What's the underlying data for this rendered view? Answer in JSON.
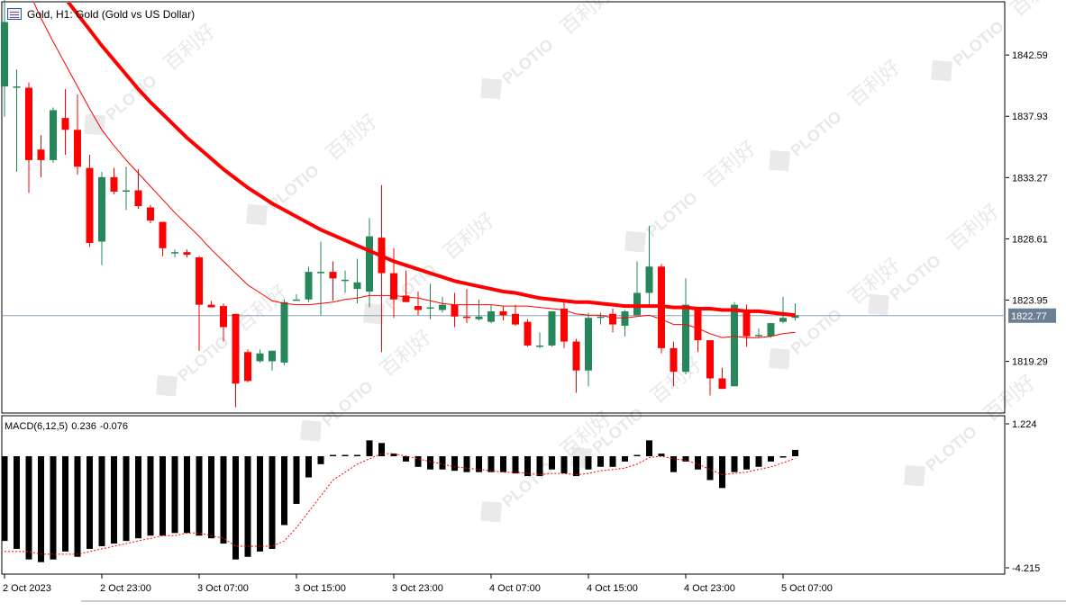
{
  "header": {
    "symbol": "Gold",
    "timeframe": "H1",
    "description": "Gold (Gold vs US Dollar)",
    "title_text": "Gold, H1:  Gold (Gold vs US Dollar)"
  },
  "colors": {
    "bull": "#26875a",
    "bear": "#ff0000",
    "ma_fast": "#ff0000",
    "ma_slow": "#ff0000",
    "current_price_line": "#8aa0b5",
    "current_price_tag": "#6b7f92",
    "macd_hist": "#000000",
    "macd_signal": "#ff0000",
    "watermark": "#d9d9d9"
  },
  "watermark": {
    "brand": "PLOTIO",
    "chinese": "百利好"
  },
  "chart_data": [
    {
      "type": "candlestick",
      "title": "Gold, H1:  Gold (Gold vs US Dollar)",
      "ylim": [
        1815.5,
        1846.5
      ],
      "y_ticks": [
        "1842.59",
        "1837.93",
        "1833.27",
        "1828.61",
        "1823.95",
        "1819.29"
      ],
      "current_price": "1822.77",
      "x_ticks": [
        "2 Oct 2023",
        "2 Oct 23:00",
        "3 Oct 07:00",
        "3 Oct 15:00",
        "3 Oct 23:00",
        "4 Oct 07:00",
        "4 Oct 15:00",
        "4 Oct 23:00",
        "5 Oct 07:00"
      ],
      "x_tick_index": [
        0,
        8,
        16,
        24,
        32,
        40,
        48,
        56,
        64
      ],
      "grid": false,
      "candles": [
        {
          "o": 1840.2,
          "h": 1847.0,
          "l": 1837.9,
          "c": 1845.1
        },
        {
          "o": 1840.2,
          "h": 1841.5,
          "l": 1833.7,
          "c": 1840.2
        },
        {
          "o": 1840.1,
          "h": 1840.5,
          "l": 1832.1,
          "c": 1834.6
        },
        {
          "o": 1835.4,
          "h": 1836.5,
          "l": 1833.3,
          "c": 1834.6
        },
        {
          "o": 1834.6,
          "h": 1838.6,
          "l": 1834.4,
          "c": 1838.4
        },
        {
          "o": 1837.8,
          "h": 1840.0,
          "l": 1835.0,
          "c": 1836.9
        },
        {
          "o": 1836.9,
          "h": 1839.6,
          "l": 1833.5,
          "c": 1834.1
        },
        {
          "o": 1834.0,
          "h": 1835.0,
          "l": 1828.0,
          "c": 1828.3
        },
        {
          "o": 1828.4,
          "h": 1833.7,
          "l": 1826.6,
          "c": 1833.3
        },
        {
          "o": 1833.3,
          "h": 1834.0,
          "l": 1832.0,
          "c": 1832.2
        },
        {
          "o": 1832.3,
          "h": 1834.1,
          "l": 1830.8,
          "c": 1832.3
        },
        {
          "o": 1832.3,
          "h": 1833.9,
          "l": 1830.9,
          "c": 1831.1
        },
        {
          "o": 1831.0,
          "h": 1831.2,
          "l": 1829.8,
          "c": 1830.0
        },
        {
          "o": 1829.9,
          "h": 1829.9,
          "l": 1827.3,
          "c": 1827.9
        },
        {
          "o": 1827.6,
          "h": 1827.8,
          "l": 1827.2,
          "c": 1827.6
        },
        {
          "o": 1827.6,
          "h": 1827.8,
          "l": 1827.2,
          "c": 1827.4
        },
        {
          "o": 1827.2,
          "h": 1827.3,
          "l": 1820.1,
          "c": 1823.6
        },
        {
          "o": 1823.6,
          "h": 1823.9,
          "l": 1823.4,
          "c": 1823.4
        },
        {
          "o": 1823.5,
          "h": 1823.7,
          "l": 1820.8,
          "c": 1821.9
        },
        {
          "o": 1822.9,
          "h": 1822.9,
          "l": 1815.8,
          "c": 1817.6
        },
        {
          "o": 1820.0,
          "h": 1820.2,
          "l": 1817.7,
          "c": 1817.8
        },
        {
          "o": 1819.3,
          "h": 1820.2,
          "l": 1819.2,
          "c": 1819.9
        },
        {
          "o": 1819.3,
          "h": 1820.1,
          "l": 1818.6,
          "c": 1820.1
        },
        {
          "o": 1819.2,
          "h": 1824.0,
          "l": 1819.0,
          "c": 1823.8
        },
        {
          "o": 1824.0,
          "h": 1824.4,
          "l": 1824.0,
          "c": 1824.0
        },
        {
          "o": 1824.0,
          "h": 1826.5,
          "l": 1823.8,
          "c": 1826.1
        },
        {
          "o": 1826.1,
          "h": 1828.4,
          "l": 1822.8,
          "c": 1826.1
        },
        {
          "o": 1826.1,
          "h": 1826.9,
          "l": 1823.9,
          "c": 1825.6
        },
        {
          "o": 1825.5,
          "h": 1826.2,
          "l": 1824.5,
          "c": 1825.5
        },
        {
          "o": 1824.8,
          "h": 1827.1,
          "l": 1823.7,
          "c": 1825.3
        },
        {
          "o": 1824.6,
          "h": 1830.2,
          "l": 1823.4,
          "c": 1828.8
        },
        {
          "o": 1828.7,
          "h": 1832.7,
          "l": 1820.0,
          "c": 1826.0
        },
        {
          "o": 1826.0,
          "h": 1827.9,
          "l": 1822.6,
          "c": 1824.0
        },
        {
          "o": 1824.3,
          "h": 1826.2,
          "l": 1823.8,
          "c": 1823.8
        },
        {
          "o": 1823.5,
          "h": 1824.6,
          "l": 1822.8,
          "c": 1823.2
        },
        {
          "o": 1823.4,
          "h": 1825.2,
          "l": 1822.5,
          "c": 1823.4
        },
        {
          "o": 1823.2,
          "h": 1824.2,
          "l": 1823.0,
          "c": 1823.6
        },
        {
          "o": 1823.6,
          "h": 1824.5,
          "l": 1821.9,
          "c": 1822.7
        },
        {
          "o": 1822.7,
          "h": 1824.8,
          "l": 1822.2,
          "c": 1822.6
        },
        {
          "o": 1822.5,
          "h": 1824.0,
          "l": 1822.4,
          "c": 1822.7
        },
        {
          "o": 1822.3,
          "h": 1823.6,
          "l": 1822.2,
          "c": 1823.1
        },
        {
          "o": 1823.1,
          "h": 1823.5,
          "l": 1822.4,
          "c": 1822.8
        },
        {
          "o": 1822.9,
          "h": 1823.6,
          "l": 1822.0,
          "c": 1822.1
        },
        {
          "o": 1822.3,
          "h": 1822.5,
          "l": 1820.4,
          "c": 1820.5
        },
        {
          "o": 1820.5,
          "h": 1821.5,
          "l": 1820.3,
          "c": 1820.5
        },
        {
          "o": 1820.5,
          "h": 1823.1,
          "l": 1820.4,
          "c": 1823.1
        },
        {
          "o": 1823.3,
          "h": 1823.9,
          "l": 1820.3,
          "c": 1820.8
        },
        {
          "o": 1820.8,
          "h": 1821.0,
          "l": 1816.9,
          "c": 1818.6
        },
        {
          "o": 1818.6,
          "h": 1823.0,
          "l": 1817.4,
          "c": 1822.6
        },
        {
          "o": 1822.6,
          "h": 1823.0,
          "l": 1822.1,
          "c": 1822.7
        },
        {
          "o": 1822.9,
          "h": 1823.3,
          "l": 1821.5,
          "c": 1822.1
        },
        {
          "o": 1822.0,
          "h": 1823.2,
          "l": 1821.2,
          "c": 1823.1
        },
        {
          "o": 1822.8,
          "h": 1826.9,
          "l": 1822.8,
          "c": 1824.5
        },
        {
          "o": 1824.5,
          "h": 1829.6,
          "l": 1823.5,
          "c": 1826.5
        },
        {
          "o": 1826.5,
          "h": 1826.7,
          "l": 1819.9,
          "c": 1820.3
        },
        {
          "o": 1820.3,
          "h": 1820.8,
          "l": 1817.4,
          "c": 1818.5
        },
        {
          "o": 1818.5,
          "h": 1825.6,
          "l": 1818.3,
          "c": 1823.6
        },
        {
          "o": 1823.4,
          "h": 1823.4,
          "l": 1820.0,
          "c": 1820.9
        },
        {
          "o": 1820.9,
          "h": 1820.9,
          "l": 1816.7,
          "c": 1818.0
        },
        {
          "o": 1818.0,
          "h": 1818.8,
          "l": 1817.2,
          "c": 1817.2
        },
        {
          "o": 1817.4,
          "h": 1823.8,
          "l": 1817.4,
          "c": 1823.6
        },
        {
          "o": 1823.2,
          "h": 1823.6,
          "l": 1820.4,
          "c": 1821.2
        },
        {
          "o": 1821.2,
          "h": 1821.8,
          "l": 1821.1,
          "c": 1821.3
        },
        {
          "o": 1821.2,
          "h": 1822.2,
          "l": 1821.1,
          "c": 1822.2
        },
        {
          "o": 1822.3,
          "h": 1824.2,
          "l": 1822.2,
          "c": 1822.6
        },
        {
          "o": 1822.6,
          "h": 1823.7,
          "l": 1822.4,
          "c": 1822.8
        }
      ],
      "ma_fast": [
        1851.5,
        1849.4,
        1847.4,
        1845.4,
        1843.6,
        1841.9,
        1840.2,
        1838.5,
        1836.9,
        1835.7,
        1834.6,
        1833.6,
        1832.6,
        1831.6,
        1830.6,
        1829.7,
        1828.8,
        1827.8,
        1826.9,
        1826.0,
        1825.1,
        1824.5,
        1823.9,
        1823.7,
        1823.6,
        1823.6,
        1823.7,
        1823.8,
        1824.0,
        1824.1,
        1824.3,
        1824.3,
        1824.3,
        1824.2,
        1824.1,
        1823.9,
        1823.7,
        1823.6,
        1823.6,
        1823.6,
        1823.6,
        1823.5,
        1823.5,
        1823.5,
        1823.4,
        1823.3,
        1823.2,
        1822.9,
        1822.8,
        1822.8,
        1822.6,
        1822.6,
        1822.7,
        1822.8,
        1822.5,
        1822.1,
        1822.1,
        1821.8,
        1821.4,
        1821.1,
        1821.2,
        1821.1,
        1821.1,
        1821.2,
        1821.4,
        1821.5
      ],
      "ma_slow": [
        1853.5,
        1852.2,
        1850.8,
        1849.5,
        1848.2,
        1846.9,
        1845.7,
        1844.5,
        1843.3,
        1842.2,
        1841.1,
        1840.0,
        1839.0,
        1838.1,
        1837.2,
        1836.3,
        1835.5,
        1834.7,
        1833.9,
        1833.2,
        1832.5,
        1831.9,
        1831.3,
        1830.8,
        1830.3,
        1829.8,
        1829.3,
        1828.9,
        1828.5,
        1828.1,
        1827.7,
        1827.3,
        1826.9,
        1826.6,
        1826.3,
        1826.0,
        1825.7,
        1825.4,
        1825.2,
        1825.0,
        1824.8,
        1824.6,
        1824.5,
        1824.3,
        1824.1,
        1824.0,
        1823.9,
        1823.8,
        1823.8,
        1823.7,
        1823.6,
        1823.5,
        1823.5,
        1823.5,
        1823.5,
        1823.4,
        1823.4,
        1823.3,
        1823.3,
        1823.2,
        1823.2,
        1823.1,
        1823.1,
        1823.0,
        1822.9,
        1822.8
      ]
    },
    {
      "type": "bar",
      "title": "MACD(6,12,5) 0.236 -0.076",
      "name": "MACD(6,12,5)",
      "last_values": [
        "0.236",
        "-0.076"
      ],
      "ylim": [
        -4.215,
        1.224
      ],
      "y_ticks": [
        "1.224",
        "-4.215"
      ],
      "grid": false,
      "series": [
        {
          "values": [
            -3.2,
            -3.5,
            -3.9,
            -4.0,
            -3.9,
            -3.6,
            -3.8,
            -3.5,
            -3.4,
            -3.3,
            -3.2,
            -3.1,
            -3.0,
            -3.0,
            -2.9,
            -2.9,
            -3.0,
            -3.1,
            -3.3,
            -3.9,
            -3.8,
            -3.6,
            -3.5,
            -2.6,
            -1.8,
            -0.8,
            -0.3,
            0.05,
            0.05,
            0.05,
            0.6,
            0.5,
            0.1,
            -0.2,
            -0.4,
            -0.5,
            -0.5,
            -0.55,
            -0.6,
            -0.6,
            -0.6,
            -0.6,
            -0.65,
            -0.75,
            -0.75,
            -0.5,
            -0.65,
            -0.75,
            -0.5,
            -0.4,
            -0.4,
            -0.2,
            0.05,
            0.6,
            0.1,
            -0.6,
            -0.2,
            -0.5,
            -0.9,
            -1.2,
            -0.6,
            -0.5,
            -0.4,
            -0.2,
            0.0,
            0.24
          ]
        },
        {
          "values": [
            -3.6,
            -3.6,
            -3.6,
            -3.7,
            -3.7,
            -3.7,
            -3.7,
            -3.6,
            -3.5,
            -3.4,
            -3.3,
            -3.2,
            -3.1,
            -3.0,
            -3.0,
            -2.9,
            -2.9,
            -3.0,
            -3.1,
            -3.4,
            -3.4,
            -3.4,
            -3.4,
            -3.2,
            -2.7,
            -2.1,
            -1.5,
            -0.9,
            -0.6,
            -0.3,
            -0.1,
            0.1,
            0.1,
            0.0,
            -0.1,
            -0.2,
            -0.3,
            -0.4,
            -0.45,
            -0.5,
            -0.55,
            -0.6,
            -0.6,
            -0.65,
            -0.7,
            -0.65,
            -0.65,
            -0.7,
            -0.65,
            -0.55,
            -0.5,
            -0.45,
            -0.3,
            -0.05,
            0.0,
            -0.1,
            -0.15,
            -0.3,
            -0.5,
            -0.7,
            -0.65,
            -0.6,
            -0.5,
            -0.4,
            -0.25,
            -0.08
          ]
        }
      ]
    }
  ]
}
